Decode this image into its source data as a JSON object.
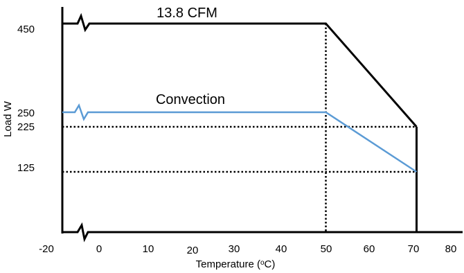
{
  "chart_data": {
    "type": "line",
    "xlabel_text": "Temperature (",
    "xlabel_sup": "o",
    "xlabel_tail": "C)",
    "ylabel": "Load W",
    "x_ticks": [
      "-20",
      "0",
      "10",
      "20",
      "30",
      "40",
      "50",
      "60",
      "70",
      "80"
    ],
    "y_ticks": [
      "450",
      "250",
      "225",
      "125"
    ],
    "series": [
      {
        "name": "13.8 CFM",
        "color": "#000000",
        "points": [
          {
            "x": -20,
            "y": 450
          },
          {
            "x": 50,
            "y": 450
          },
          {
            "x": 70,
            "y": 225
          }
        ]
      },
      {
        "name": "Convection",
        "color": "#5b9bd5",
        "points": [
          {
            "x": -20,
            "y": 250
          },
          {
            "x": 50,
            "y": 250
          },
          {
            "x": 70,
            "y": 125
          }
        ]
      }
    ],
    "reference_lines": [
      {
        "type": "horizontal",
        "y": 225
      },
      {
        "type": "horizontal",
        "y": 125
      },
      {
        "type": "vertical",
        "x": 50
      }
    ],
    "axis_breaks": "x and y axes broken between -20 and 0",
    "grid": false
  }
}
